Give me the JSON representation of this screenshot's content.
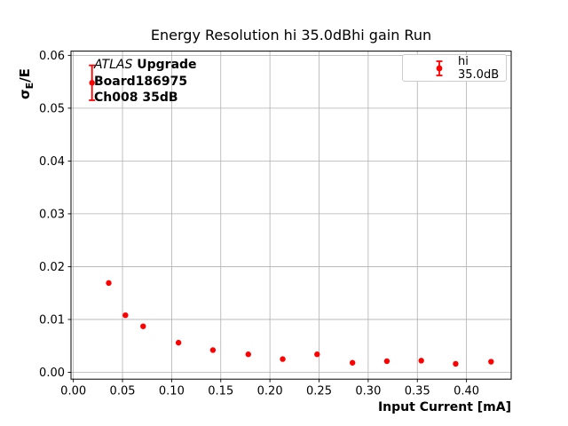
{
  "chart_data": {
    "type": "scatter",
    "title": "Energy Resolution hi 35.0dBhi gain Run",
    "xlabel": "Input Current [mA]",
    "ylabel": "σE/E",
    "ylabel_parts": {
      "sigma": "σ",
      "sub": "E",
      "rest": "/E"
    },
    "xlim": [
      -0.0024,
      0.4455
    ],
    "ylim": [
      -0.0013,
      0.0608
    ],
    "xticks": [
      0.0,
      0.05,
      0.1,
      0.15,
      0.2,
      0.25,
      0.3,
      0.35,
      0.4
    ],
    "xtick_labels": [
      "0.00",
      "0.05",
      "0.10",
      "0.15",
      "0.20",
      "0.25",
      "0.30",
      "0.35",
      "0.40"
    ],
    "yticks": [
      0.0,
      0.01,
      0.02,
      0.03,
      0.04,
      0.05,
      0.06
    ],
    "ytick_labels": [
      "0.00",
      "0.01",
      "0.02",
      "0.03",
      "0.04",
      "0.05",
      "0.06"
    ],
    "grid": true,
    "grid_color": "#b0b0b0",
    "legend_position": "upper right",
    "series": [
      {
        "name": "hi 35.0dB",
        "color": "#ff0000",
        "marker": "o",
        "x": [
          0.019,
          0.036,
          0.053,
          0.071,
          0.107,
          0.142,
          0.178,
          0.213,
          0.248,
          0.284,
          0.319,
          0.354,
          0.389,
          0.425
        ],
        "y": [
          0.0548,
          0.0169,
          0.0108,
          0.0087,
          0.0056,
          0.0042,
          0.0034,
          0.0025,
          0.0034,
          0.0018,
          0.0021,
          0.0022,
          0.0016,
          0.002
        ],
        "yerr": [
          0.0033,
          0,
          0,
          0,
          0,
          0,
          0,
          0,
          0,
          0,
          0,
          0,
          0,
          0
        ]
      }
    ],
    "annotation": {
      "atlas": "ATLAS",
      "upgrade": " Upgrade",
      "line2": "Board186975",
      "line3": "Ch008 35dB"
    }
  }
}
